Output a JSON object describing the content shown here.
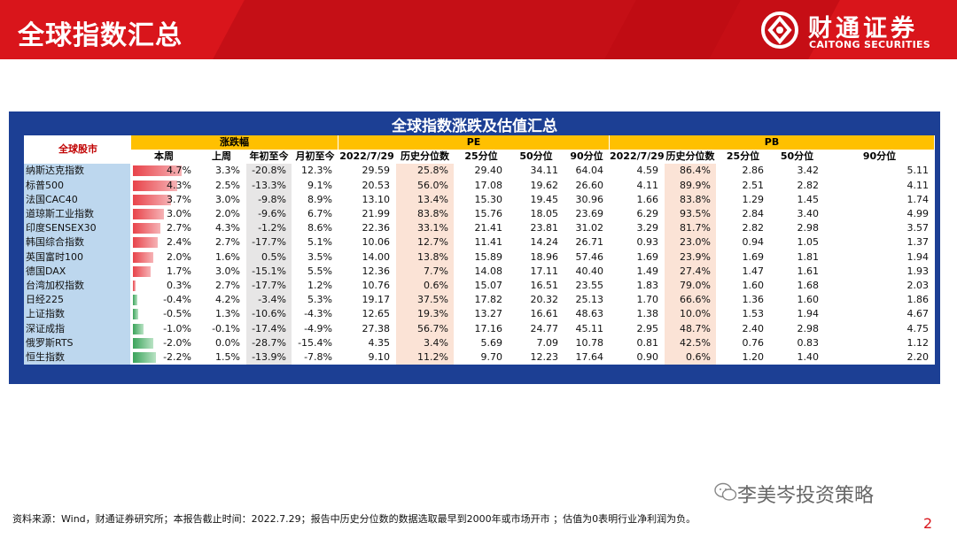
{
  "header": {
    "title": "全球指数汇总",
    "brand_cn": "财通证券",
    "brand_en": "CAITONG SECURITIES",
    "brand_color": "#d9151b"
  },
  "table": {
    "title": "全球指数涨跌及估值汇总",
    "group_headers": {
      "market": "全球股市",
      "change": "涨跌幅",
      "pe": "PE",
      "pb": "PB"
    },
    "sub_headers": [
      "本周",
      "上周",
      "年初至今",
      "月初至今",
      "2022/7/29",
      "历史分位数",
      "25分位",
      "50分位",
      "90分位",
      "2022/7/29",
      "历史分位数",
      "25分位",
      "50分位",
      "90分位"
    ],
    "bar_scale_max": 5.0,
    "rows": [
      {
        "name": "纳斯达克指数",
        "week": 4.7,
        "week_text": "4.7%",
        "cells": [
          "3.3%",
          "-20.8%",
          "12.3%",
          "29.59",
          "25.8%",
          "29.40",
          "34.11",
          "64.04",
          "4.59",
          "86.4%",
          "2.86",
          "3.42",
          "5.11"
        ]
      },
      {
        "name": "标普500",
        "week": 4.3,
        "week_text": "4.3%",
        "cells": [
          "2.5%",
          "-13.3%",
          "9.1%",
          "20.53",
          "56.0%",
          "17.08",
          "19.62",
          "26.60",
          "4.11",
          "89.9%",
          "2.51",
          "2.82",
          "4.11"
        ]
      },
      {
        "name": "法国CAC40",
        "week": 3.7,
        "week_text": "3.7%",
        "cells": [
          "3.0%",
          "-9.8%",
          "8.9%",
          "13.10",
          "13.4%",
          "15.30",
          "19.45",
          "30.96",
          "1.66",
          "83.8%",
          "1.29",
          "1.45",
          "1.74"
        ]
      },
      {
        "name": "道琼斯工业指数",
        "week": 3.0,
        "week_text": "3.0%",
        "cells": [
          "2.0%",
          "-9.6%",
          "6.7%",
          "21.99",
          "83.8%",
          "15.76",
          "18.05",
          "23.69",
          "6.29",
          "93.5%",
          "2.84",
          "3.40",
          "4.99"
        ]
      },
      {
        "name": "印度SENSEX30",
        "week": 2.7,
        "week_text": "2.7%",
        "cells": [
          "4.3%",
          "-1.2%",
          "8.6%",
          "22.36",
          "33.1%",
          "21.41",
          "23.81",
          "31.02",
          "3.29",
          "81.7%",
          "2.82",
          "2.98",
          "3.57"
        ]
      },
      {
        "name": "韩国综合指数",
        "week": 2.4,
        "week_text": "2.4%",
        "cells": [
          "2.7%",
          "-17.7%",
          "5.1%",
          "10.06",
          "12.7%",
          "11.41",
          "14.24",
          "26.71",
          "0.93",
          "23.0%",
          "0.94",
          "1.05",
          "1.37"
        ]
      },
      {
        "name": "英国富时100",
        "week": 2.0,
        "week_text": "2.0%",
        "cells": [
          "1.6%",
          "0.5%",
          "3.5%",
          "14.00",
          "13.8%",
          "15.89",
          "18.96",
          "57.46",
          "1.69",
          "23.9%",
          "1.69",
          "1.81",
          "1.94"
        ]
      },
      {
        "name": "德国DAX",
        "week": 1.7,
        "week_text": "1.7%",
        "cells": [
          "3.0%",
          "-15.1%",
          "5.5%",
          "12.36",
          "7.7%",
          "14.08",
          "17.11",
          "40.40",
          "1.49",
          "27.4%",
          "1.47",
          "1.61",
          "1.93"
        ]
      },
      {
        "name": "台湾加权指数",
        "week": 0.3,
        "week_text": "0.3%",
        "cells": [
          "2.7%",
          "-17.7%",
          "1.2%",
          "10.76",
          "0.6%",
          "15.07",
          "16.51",
          "23.55",
          "1.83",
          "79.0%",
          "1.60",
          "1.68",
          "2.03"
        ]
      },
      {
        "name": "日经225",
        "week": -0.4,
        "week_text": "-0.4%",
        "cells": [
          "4.2%",
          "-3.4%",
          "5.3%",
          "19.17",
          "37.5%",
          "17.82",
          "20.32",
          "25.13",
          "1.70",
          "66.6%",
          "1.36",
          "1.60",
          "1.86"
        ]
      },
      {
        "name": "上证指数",
        "week": -0.5,
        "week_text": "-0.5%",
        "cells": [
          "1.3%",
          "-10.6%",
          "-4.3%",
          "12.65",
          "19.3%",
          "13.27",
          "16.61",
          "48.63",
          "1.38",
          "10.0%",
          "1.53",
          "1.94",
          "4.67"
        ]
      },
      {
        "name": "深证成指",
        "week": -1.0,
        "week_text": "-1.0%",
        "cells": [
          "-0.1%",
          "-17.4%",
          "-4.9%",
          "27.38",
          "56.7%",
          "17.16",
          "24.77",
          "45.11",
          "2.95",
          "48.7%",
          "2.40",
          "2.98",
          "4.75"
        ]
      },
      {
        "name": "俄罗斯RTS",
        "week": -2.0,
        "week_text": "-2.0%",
        "cells": [
          "0.0%",
          "-28.7%",
          "-15.4%",
          "4.35",
          "3.4%",
          "5.69",
          "7.09",
          "10.78",
          "0.81",
          "42.5%",
          "0.76",
          "0.83",
          "1.12"
        ]
      },
      {
        "name": "恒生指数",
        "week": -2.2,
        "week_text": "-2.2%",
        "cells": [
          "1.5%",
          "-13.9%",
          "-7.8%",
          "9.10",
          "11.2%",
          "9.70",
          "12.23",
          "17.64",
          "0.90",
          "0.6%",
          "1.20",
          "1.40",
          "2.20"
        ]
      }
    ],
    "colors": {
      "positive_bar": "#e8434a",
      "negative_bar": "#3aa35a",
      "header_bg": "#ffc000",
      "name_bg": "#bdd7ee",
      "panel_bg": "#1c3f94"
    }
  },
  "footer": {
    "source": "资料来源：Wind，财通证券研究所；本报告截止时间：2022.7.29；报告中历史分位数的数据选取最早到2000年或市场开市 ；估值为0表明行业净利润为负。",
    "watermark": "李美岑投资策略",
    "page_number": "2"
  }
}
